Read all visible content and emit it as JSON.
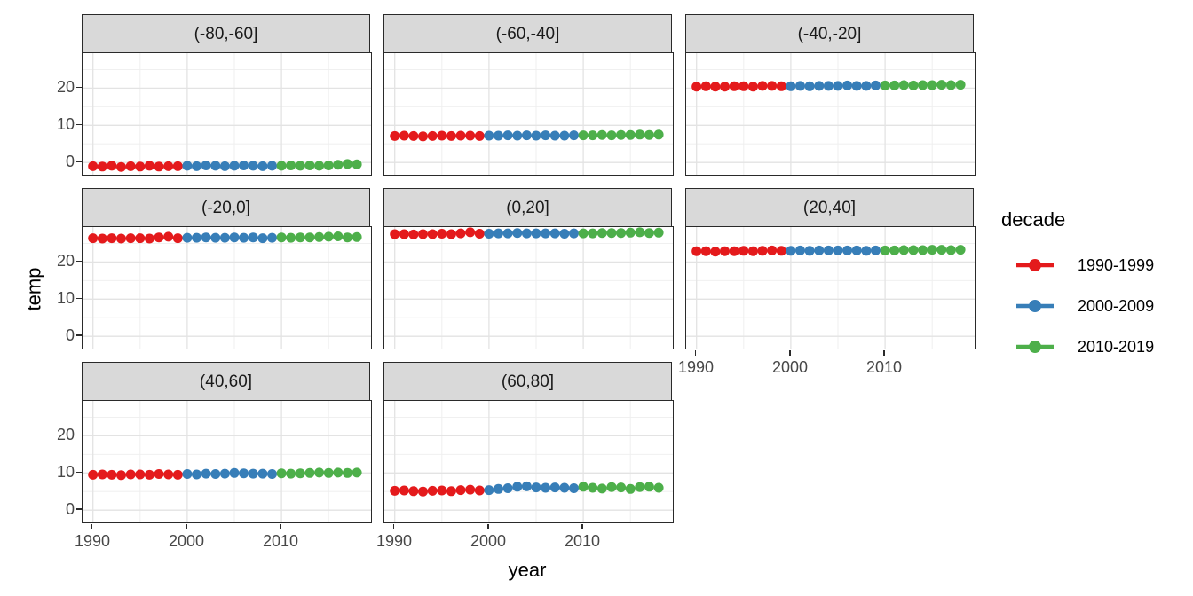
{
  "chart_data": {
    "type": "scatter",
    "title": "",
    "xlabel": "year",
    "ylabel": "temp",
    "facet_labels": [
      "(-80,-60]",
      "(-60,-40]",
      "(-40,-20]",
      "(-20,0]",
      "(0,20]",
      "(20,40]",
      "(40,60]",
      "(60,80]"
    ],
    "x_ticks": [
      1990,
      2000,
      2010
    ],
    "y_ticks": [
      0,
      10,
      20
    ],
    "x_minor_ticks": [
      1995,
      2005,
      2015
    ],
    "y_minor_ticks": [
      5,
      15,
      25
    ],
    "x_domain": [
      1988.9,
      2019.5
    ],
    "y_domain": [
      -3.3,
      29.4
    ],
    "grid": true,
    "legend": {
      "title": "decade",
      "position": "right",
      "entries": [
        {
          "label": "1990-1999",
          "color": "#E41A1C"
        },
        {
          "label": "2000-2009",
          "color": "#377EB8"
        },
        {
          "label": "2010-2019",
          "color": "#4DAF4A"
        }
      ]
    },
    "years": [
      1990,
      1991,
      1992,
      1993,
      1994,
      1995,
      1996,
      1997,
      1998,
      1999,
      2000,
      2001,
      2002,
      2003,
      2004,
      2005,
      2006,
      2007,
      2008,
      2009,
      2010,
      2011,
      2012,
      2013,
      2014,
      2015,
      2016,
      2017,
      2018
    ],
    "facets": [
      {
        "label": "(-80,-60]",
        "temps": [
          -1.0,
          -1.1,
          -0.9,
          -1.2,
          -1.0,
          -1.1,
          -0.9,
          -1.1,
          -1.0,
          -1.0,
          -0.9,
          -1.0,
          -0.8,
          -0.9,
          -1.0,
          -0.9,
          -0.8,
          -0.9,
          -1.0,
          -0.9,
          -0.9,
          -0.8,
          -0.9,
          -0.8,
          -0.9,
          -0.8,
          -0.6,
          -0.4,
          -0.5
        ]
      },
      {
        "label": "(-60,-40]",
        "temps": [
          7.1,
          7.2,
          7.1,
          7.0,
          7.1,
          7.2,
          7.1,
          7.2,
          7.2,
          7.1,
          7.2,
          7.2,
          7.3,
          7.2,
          7.3,
          7.2,
          7.3,
          7.2,
          7.2,
          7.3,
          7.3,
          7.3,
          7.4,
          7.3,
          7.4,
          7.4,
          7.5,
          7.4,
          7.5
        ]
      },
      {
        "label": "(-40,-20]",
        "temps": [
          20.4,
          20.5,
          20.4,
          20.4,
          20.5,
          20.5,
          20.4,
          20.6,
          20.6,
          20.5,
          20.5,
          20.6,
          20.5,
          20.6,
          20.6,
          20.6,
          20.7,
          20.6,
          20.6,
          20.7,
          20.7,
          20.7,
          20.8,
          20.7,
          20.8,
          20.8,
          20.9,
          20.8,
          20.9
        ]
      },
      {
        "label": "(-20,0]",
        "temps": [
          26.4,
          26.3,
          26.4,
          26.3,
          26.4,
          26.4,
          26.3,
          26.6,
          26.8,
          26.4,
          26.5,
          26.5,
          26.6,
          26.5,
          26.5,
          26.6,
          26.5,
          26.6,
          26.4,
          26.5,
          26.6,
          26.5,
          26.6,
          26.6,
          26.7,
          26.8,
          26.9,
          26.6,
          26.7
        ]
      },
      {
        "label": "(0,20]",
        "temps": [
          27.5,
          27.5,
          27.4,
          27.5,
          27.5,
          27.6,
          27.5,
          27.7,
          28.0,
          27.6,
          27.6,
          27.7,
          27.7,
          27.8,
          27.7,
          27.7,
          27.7,
          27.7,
          27.6,
          27.7,
          27.7,
          27.7,
          27.8,
          27.8,
          27.8,
          27.9,
          28.0,
          27.8,
          27.9
        ]
      },
      {
        "label": "(20,40]",
        "temps": [
          22.9,
          22.9,
          22.8,
          22.9,
          22.9,
          23.0,
          22.9,
          23.0,
          23.1,
          23.0,
          23.0,
          23.1,
          23.0,
          23.1,
          23.1,
          23.1,
          23.1,
          23.1,
          23.0,
          23.1,
          23.1,
          23.1,
          23.2,
          23.2,
          23.2,
          23.3,
          23.3,
          23.2,
          23.3
        ]
      },
      {
        "label": "(40,60]",
        "temps": [
          9.5,
          9.6,
          9.5,
          9.4,
          9.6,
          9.6,
          9.5,
          9.7,
          9.6,
          9.5,
          9.7,
          9.6,
          9.8,
          9.7,
          9.8,
          10.0,
          9.9,
          9.8,
          9.8,
          9.7,
          9.9,
          9.8,
          9.9,
          10.0,
          10.1,
          10.0,
          10.1,
          10.0,
          10.1
        ]
      },
      {
        "label": "(60,80]",
        "temps": [
          5.2,
          5.3,
          5.1,
          5.0,
          5.2,
          5.3,
          5.1,
          5.4,
          5.5,
          5.3,
          5.4,
          5.7,
          5.9,
          6.3,
          6.4,
          6.1,
          6.0,
          6.1,
          6.0,
          5.9,
          6.3,
          6.0,
          5.8,
          6.2,
          6.1,
          5.7,
          6.2,
          6.3,
          6.0
        ]
      }
    ]
  },
  "colors": {
    "background": "#ffffff",
    "strip_bg": "#d9d9d9",
    "panel_border": "#2a2a2a",
    "grid_major": "#e3e3e3",
    "grid_minor": "#eeeeee",
    "axis_text": "#474747",
    "title_text": "#000000"
  }
}
